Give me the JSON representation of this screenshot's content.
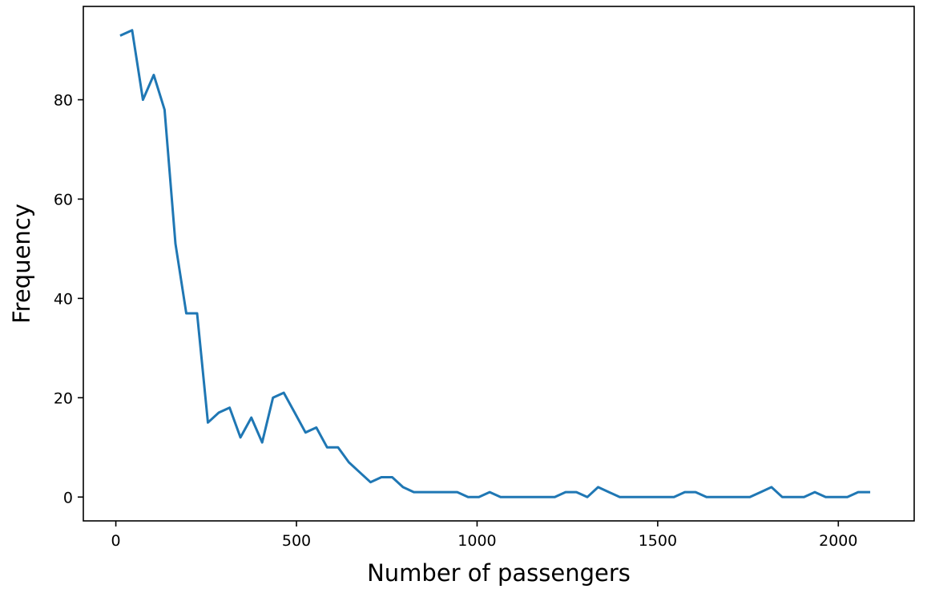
{
  "chart_data": {
    "type": "line",
    "xlabel": "Number of passengers",
    "ylabel": "Frequency",
    "xlim": [
      -90,
      2210
    ],
    "ylim": [
      -4.8,
      98.8
    ],
    "xticks": [
      0,
      500,
      1000,
      1500,
      2000
    ],
    "yticks": [
      0,
      20,
      40,
      60,
      80
    ],
    "grid": false,
    "series": [
      {
        "color": "#1f77b4",
        "x": [
          15,
          45,
          75,
          105,
          135,
          165,
          195,
          225,
          255,
          285,
          315,
          345,
          375,
          405,
          435,
          465,
          495,
          525,
          555,
          585,
          615,
          645,
          675,
          705,
          735,
          765,
          795,
          825,
          855,
          885,
          915,
          945,
          975,
          1005,
          1035,
          1065,
          1095,
          1125,
          1155,
          1185,
          1215,
          1245,
          1275,
          1305,
          1335,
          1365,
          1395,
          1425,
          1455,
          1485,
          1515,
          1545,
          1575,
          1605,
          1635,
          1665,
          1695,
          1725,
          1755,
          1785,
          1815,
          1845,
          1875,
          1905,
          1935,
          1965,
          1995,
          2025,
          2055,
          2085
        ],
        "y": [
          93,
          94,
          80,
          85,
          78,
          51,
          37,
          37,
          15,
          17,
          18,
          12,
          16,
          11,
          20,
          21,
          17,
          13,
          14,
          10,
          10,
          7,
          5,
          3,
          4,
          4,
          2,
          1,
          1,
          1,
          1,
          1,
          0,
          0,
          1,
          0,
          0,
          0,
          0,
          0,
          0,
          1,
          1,
          0,
          2,
          1,
          0,
          0,
          0,
          0,
          0,
          0,
          1,
          1,
          0,
          0,
          0,
          0,
          0,
          1,
          2,
          0,
          0,
          0,
          1,
          0,
          0,
          0,
          1,
          1
        ]
      }
    ]
  }
}
